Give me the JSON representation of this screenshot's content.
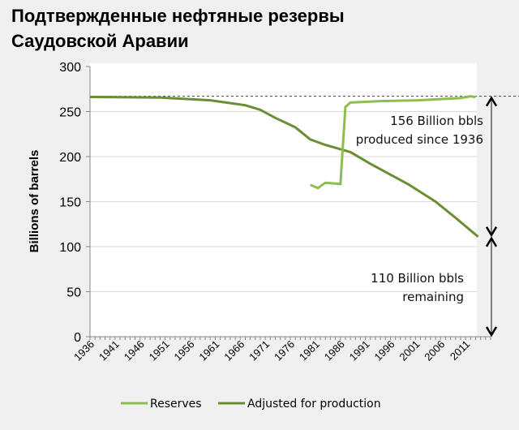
{
  "chart_data": {
    "type": "line",
    "title_lines": [
      "Подтвержденные нефтяные резервы",
      "Саудовской Аравии"
    ],
    "ylabel": "Billions of barrels",
    "xlabel": "",
    "ylim": [
      0,
      300
    ],
    "yticks": [
      0,
      50,
      100,
      150,
      200,
      250,
      300
    ],
    "xlim": [
      1936,
      2016
    ],
    "xticks": [
      1936,
      1941,
      1946,
      1951,
      1956,
      1961,
      1966,
      1971,
      1976,
      1981,
      1986,
      1991,
      1996,
      2001,
      2006,
      2011
    ],
    "grid": true,
    "legend_position": "bottom",
    "reference_line": 267,
    "series": [
      {
        "name": "Reserves",
        "color": "#8fbc4f",
        "x": [
          1980,
          1981.5,
          1983,
          1985,
          1986,
          1987,
          1988,
          1994,
          2001.5,
          2010,
          2012,
          2013
        ],
        "y": [
          168.6,
          165,
          171,
          170,
          169.5,
          255,
          260,
          261.6,
          262.5,
          265,
          267,
          266
        ]
      },
      {
        "name": "Adjusted for production",
        "color": "#6b8e32",
        "x": [
          1936,
          1950,
          1960,
          1967,
          1970,
          1973,
          1977,
          1980,
          1983,
          1988,
          1992,
          1999.5,
          2005,
          2009,
          2013.5
        ],
        "y": [
          266.2,
          265.5,
          262.5,
          257,
          252,
          243,
          232.5,
          219,
          213,
          205,
          192,
          169.5,
          150,
          132,
          111
        ]
      }
    ],
    "annotations": [
      {
        "lines": [
          "156 Billion bbls",
          "produced since 1936"
        ],
        "from": 267,
        "to": 111
      },
      {
        "lines": [
          "110 Billion bbls",
          "remaining"
        ],
        "from": 111,
        "to": 0
      }
    ]
  }
}
